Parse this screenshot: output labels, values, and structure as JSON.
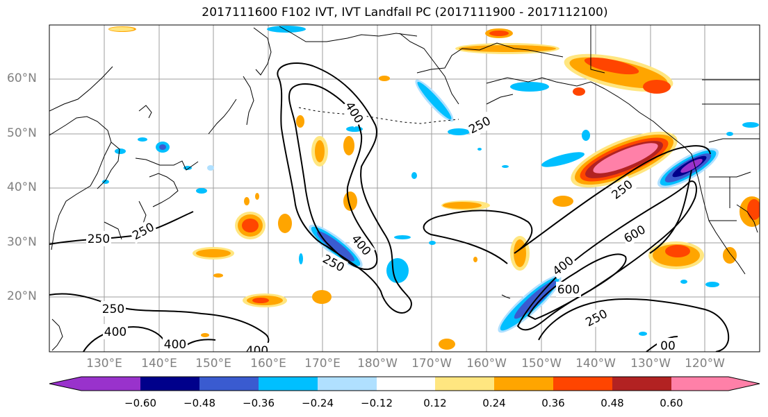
{
  "title": "2017111600 F102 IVT, IVT Landfall PC (2017111900 - 2017112100)",
  "latitude_labels": [
    "60°N",
    "50°N",
    "40°N",
    "30°N",
    "20°N"
  ],
  "longitude_labels": [
    "130°E",
    "140°E",
    "150°E",
    "160°E",
    "170°E",
    "180°W",
    "170°W",
    "160°W",
    "150°W",
    "140°W",
    "130°W",
    "120°W"
  ],
  "contour_labels": [
    "400",
    "250",
    "250",
    "250",
    "400",
    "250",
    "250",
    "600",
    "400",
    "600",
    "250",
    "250",
    "400",
    "400",
    "400",
    "00"
  ],
  "colorbar": {
    "tick_labels": [
      "−0.60",
      "−0.48",
      "−0.36",
      "−0.24",
      "−0.12",
      "0.12",
      "0.24",
      "0.36",
      "0.48",
      "0.60"
    ],
    "colors": [
      "#9932cc",
      "#00008b",
      "#3a5bd0",
      "#00bfff",
      "#b0e0ff",
      "#ffffff",
      "#ffe680",
      "#ffa500",
      "#ff4500",
      "#b22222",
      "#ff80a8"
    ]
  }
}
